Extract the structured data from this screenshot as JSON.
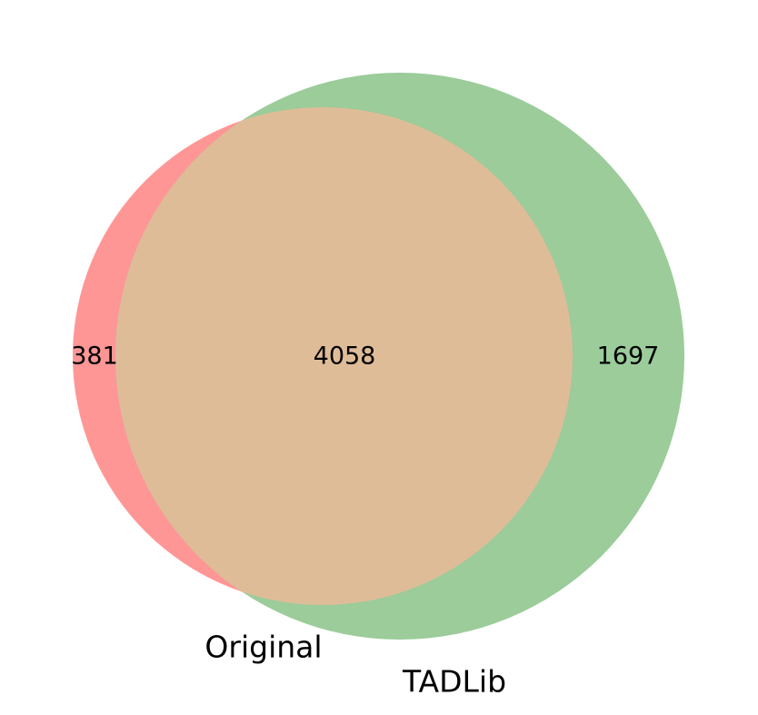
{
  "venn": {
    "sets": [
      {
        "name": "Original",
        "color": "#ff9696"
      },
      {
        "name": "TADLib",
        "color": "#9bcc9a"
      }
    ],
    "overlap_color": "#dfbc98",
    "regions": {
      "only_original": "381",
      "intersection": "4058",
      "only_tadlib": "1697"
    }
  }
}
